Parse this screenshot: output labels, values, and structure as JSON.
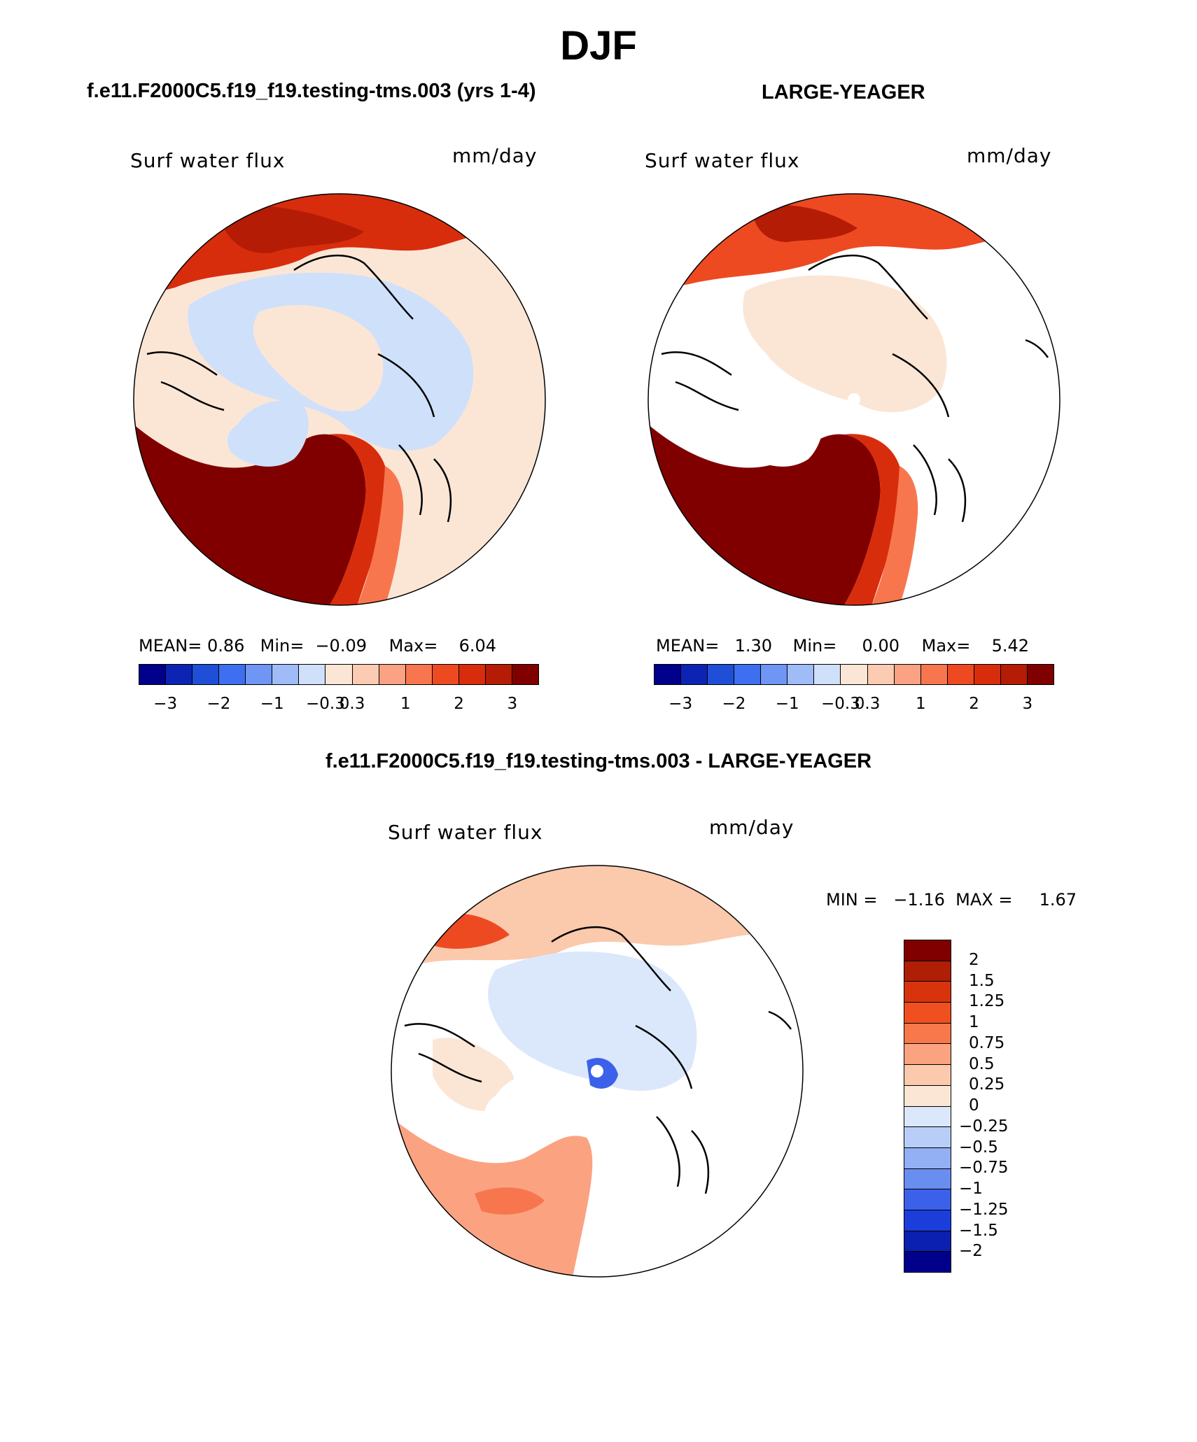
{
  "title": "DJF",
  "panels": {
    "test": {
      "case_title": "f.e11.F2000C5.f19_f19.testing-tms.003 (yrs 1-4)",
      "variable_label": "Surf water flux",
      "units_label": "mm/day",
      "stats": {
        "mean_label": "MEAN=",
        "mean": "0.86",
        "min_label": "Min=",
        "min": "−0.09",
        "max_label": "Max=",
        "max": "6.04"
      }
    },
    "control": {
      "case_title": "LARGE-YEAGER",
      "variable_label": "Surf water flux",
      "units_label": "mm/day",
      "stats": {
        "mean_label": "MEAN=",
        "mean": "1.30",
        "min_label": "Min=",
        "min": "0.00",
        "max_label": "Max=",
        "max": "5.42"
      }
    },
    "difference": {
      "case_title": "f.e11.F2000C5.f19_f19.testing-tms.003 - LARGE-YEAGER",
      "variable_label": "Surf water flux",
      "units_label": "mm/day",
      "stats_text": "MIN =   −1.16  MAX =     1.67"
    }
  },
  "colorbar_main": {
    "colors": [
      "#00008b",
      "#0b24b4",
      "#1f4fd6",
      "#3e6ff0",
      "#6f95f5",
      "#9fbcf8",
      "#cfe0fb",
      "#fbe6d6",
      "#fbcbb2",
      "#fba184",
      "#f8764e",
      "#ee4a22",
      "#d82d0c",
      "#b51c05",
      "#800000"
    ],
    "tick_labels": [
      "−3",
      "−2",
      "−1",
      "−0.3",
      "0.3",
      "1",
      "2",
      "3"
    ]
  },
  "colorbar_diff": {
    "colors_top_to_bottom": [
      "#800000",
      "#ae1f05",
      "#d7340d",
      "#f0501f",
      "#f8784c",
      "#fba381",
      "#fbc9ac",
      "#fbe6d6",
      "#dbe8fb",
      "#b8cef8",
      "#93b0f4",
      "#6a8df0",
      "#3b61ea",
      "#1b3edb",
      "#0b1fb0",
      "#00008b"
    ],
    "tick_labels": [
      "2",
      "1.5",
      "1.25",
      "1",
      "0.75",
      "0.5",
      "0.25",
      "0",
      "−0.25",
      "−0.5",
      "−0.75",
      "−1",
      "−1.25",
      "−1.5",
      "−2"
    ]
  }
}
